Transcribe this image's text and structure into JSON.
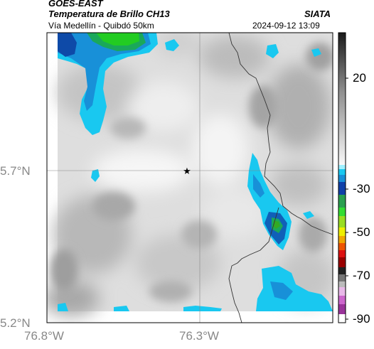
{
  "header": {
    "satellite": "GOES-EAST",
    "product": "Temperatura de Brillo CH13",
    "route": "Vía Medellín - Quibdó 50km",
    "organization": "SIATA",
    "datetime": "2024-09-12 13:09"
  },
  "axes": {
    "lat_labels": [
      {
        "label": "5.7°N",
        "value": 5.7
      },
      {
        "label": "5.2°N",
        "value": 5.2
      }
    ],
    "lon_labels": [
      {
        "label": "76.8°W",
        "value": -76.8
      },
      {
        "label": "76.3°W",
        "value": -76.3
      }
    ]
  },
  "colorbar": {
    "labels": [
      "20",
      "-30",
      "-50",
      "-70",
      "-90"
    ],
    "values": [
      20,
      -30,
      -50,
      -70,
      -90
    ]
  },
  "marker": {
    "icon": "star-icon"
  },
  "colors": {
    "cold_cloud_cyan": "#19c8f0",
    "cold_cloud_blue": "#1060b0",
    "cold_cloud_green": "#22b422",
    "gridline": "#888888",
    "border": "#333333"
  }
}
